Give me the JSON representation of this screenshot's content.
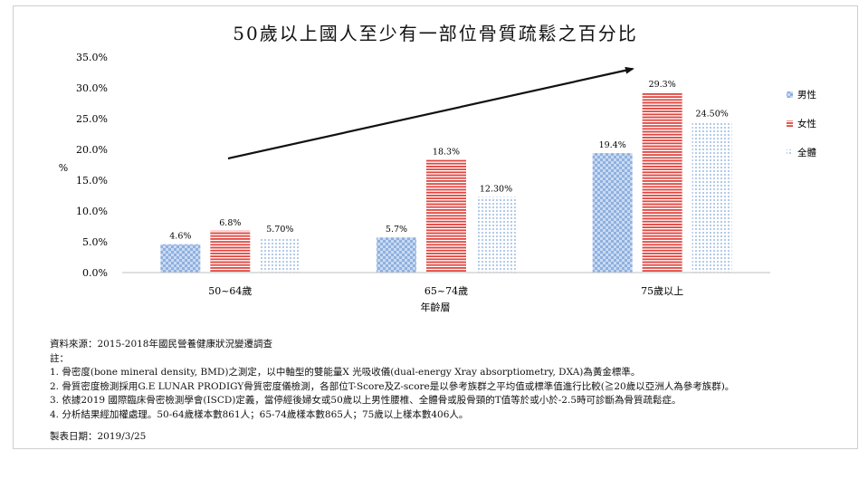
{
  "chart_data": {
    "type": "bar",
    "title": "50歲以上國人至少有一部位骨質疏鬆之百分比",
    "xlabel": "年齡層",
    "ylabel": "%",
    "ylim": [
      0,
      35
    ],
    "ytick_labels": [
      "0.0%",
      "5.0%",
      "10.0%",
      "15.0%",
      "20.0%",
      "25.0%",
      "30.0%",
      "35.0%"
    ],
    "categories": [
      "50~64歲",
      "65~74歲",
      "75歲以上"
    ],
    "series": [
      {
        "name": "男性",
        "values": [
          4.6,
          5.7,
          19.4
        ],
        "labels": [
          "4.6%",
          "5.7%",
          "19.4%"
        ],
        "color": "#a9c4e8",
        "pattern": "checker"
      },
      {
        "name": "女性",
        "values": [
          6.8,
          18.3,
          29.3
        ],
        "labels": [
          "6.8%",
          "18.3%",
          "29.3%"
        ],
        "color": "#e0453f",
        "pattern": "horizontal-stripes"
      },
      {
        "name": "全體",
        "values": [
          5.7,
          12.3,
          24.5
        ],
        "labels": [
          "5.70%",
          "12.30%",
          "24.50%"
        ],
        "color": "#8fb3e0",
        "pattern": "dots"
      }
    ],
    "legend_position": "right",
    "grid": false,
    "trend_arrow": "increasing"
  },
  "notes": {
    "source": "資料來源：2015-2018年國民營養健康狀況變遷調查",
    "heading": "註：",
    "items": [
      "1.  骨密度(bone mineral density, BMD)之測定，以中軸型的雙能量X 光吸收儀(dual-energy Xray absorptiometry, DXA)為黃金標準。",
      "2.  骨質密度檢測採用G.E LUNAR PRODIGY骨質密度儀檢測，各部位T-Score及Z-score是以參考族群之平均值或標準值進行比較(≧20歲以亞洲人為參考族群)。",
      "3.  依據2019 國際臨床骨密檢測學會(ISCD)定義，當停經後婦女或50歲以上男性腰椎、全體骨或股骨頸的T值等於或小於-2.5時可診斷為骨質疏鬆症。",
      "4.  分析結果經加權處理。50-64歲樣本數861人；65-74歲樣本數865人；75歲以上樣本數406人。"
    ],
    "made_date": "製表日期：2019/3/25"
  }
}
